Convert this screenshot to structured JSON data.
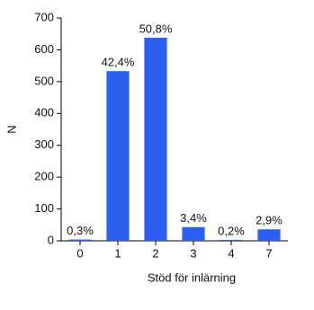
{
  "chart_data": {
    "type": "bar",
    "xlabel": "Stöd för inlärning",
    "ylabel": "N",
    "categories": [
      "0",
      "1",
      "2",
      "3",
      "4",
      "7"
    ],
    "values": [
      4,
      533,
      638,
      43,
      3,
      36
    ],
    "bar_labels": [
      "0,3%",
      "42,4%",
      "50,8%",
      "3,4%",
      "0,2%",
      "2,9%"
    ],
    "color": "#2b5ff0",
    "ylim": [
      0,
      700
    ],
    "yticks": [
      0,
      100,
      200,
      300,
      400,
      500,
      600,
      700
    ],
    "grid": false
  }
}
